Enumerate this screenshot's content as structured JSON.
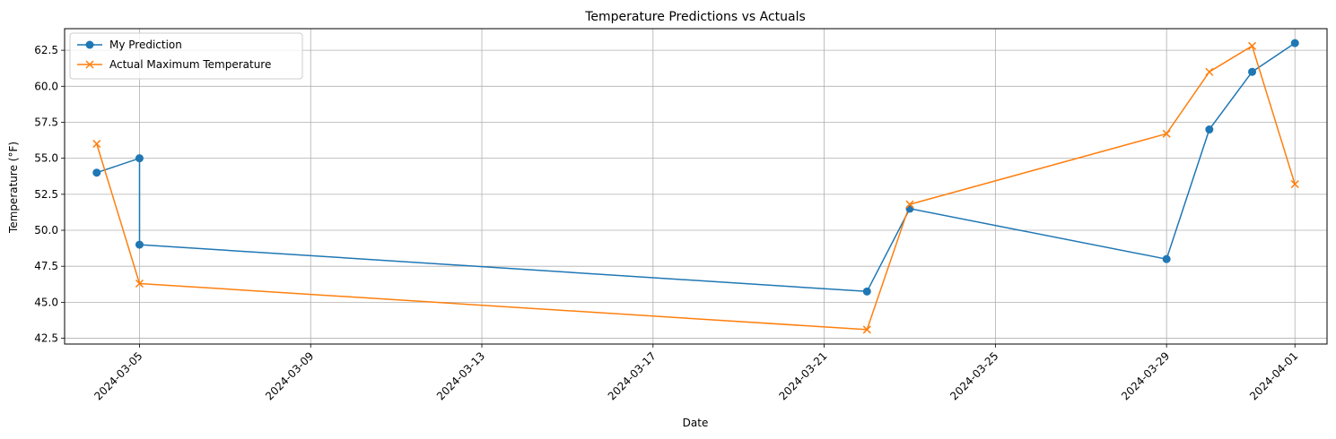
{
  "chart_data": {
    "type": "line",
    "title": "Temperature Predictions vs Actuals",
    "xlabel": "Date",
    "ylabel": "Temperature (°F)",
    "x_type": "date",
    "xlim": [
      "2024-03-03T06:00",
      "2024-04-01T18:00"
    ],
    "ylim": [
      42.1,
      64.0
    ],
    "xticks": [
      "2024-03-05",
      "2024-03-09",
      "2024-03-13",
      "2024-03-17",
      "2024-03-21",
      "2024-03-25",
      "2024-03-29",
      "2024-04-01"
    ],
    "yticks": [
      42.5,
      45.0,
      47.5,
      50.0,
      52.5,
      55.0,
      57.5,
      60.0,
      62.5
    ],
    "ytick_labels": [
      "42.5",
      "45.0",
      "47.5",
      "50.0",
      "52.5",
      "55.0",
      "57.5",
      "60.0",
      "62.5"
    ],
    "grid": true,
    "legend_position": "top-left",
    "series": [
      {
        "name": "My Prediction",
        "color": "#1f77b4",
        "marker": "circle",
        "x": [
          "2024-03-04",
          "2024-03-05",
          "2024-03-05",
          "2024-03-22",
          "2024-03-23",
          "2024-03-29",
          "2024-03-30",
          "2024-03-31",
          "2024-04-01"
        ],
        "y": [
          54.0,
          55.0,
          49.0,
          45.75,
          51.5,
          48.0,
          57.0,
          61.0,
          63.0
        ]
      },
      {
        "name": "Actual Maximum Temperature",
        "color": "#ff7f0e",
        "marker": "x",
        "x": [
          "2024-03-04",
          "2024-03-05",
          "2024-03-22",
          "2024-03-23",
          "2024-03-29",
          "2024-03-30",
          "2024-03-31",
          "2024-04-01"
        ],
        "y": [
          56.0,
          46.3,
          43.1,
          51.8,
          56.7,
          61.0,
          62.8,
          53.2
        ]
      }
    ]
  }
}
